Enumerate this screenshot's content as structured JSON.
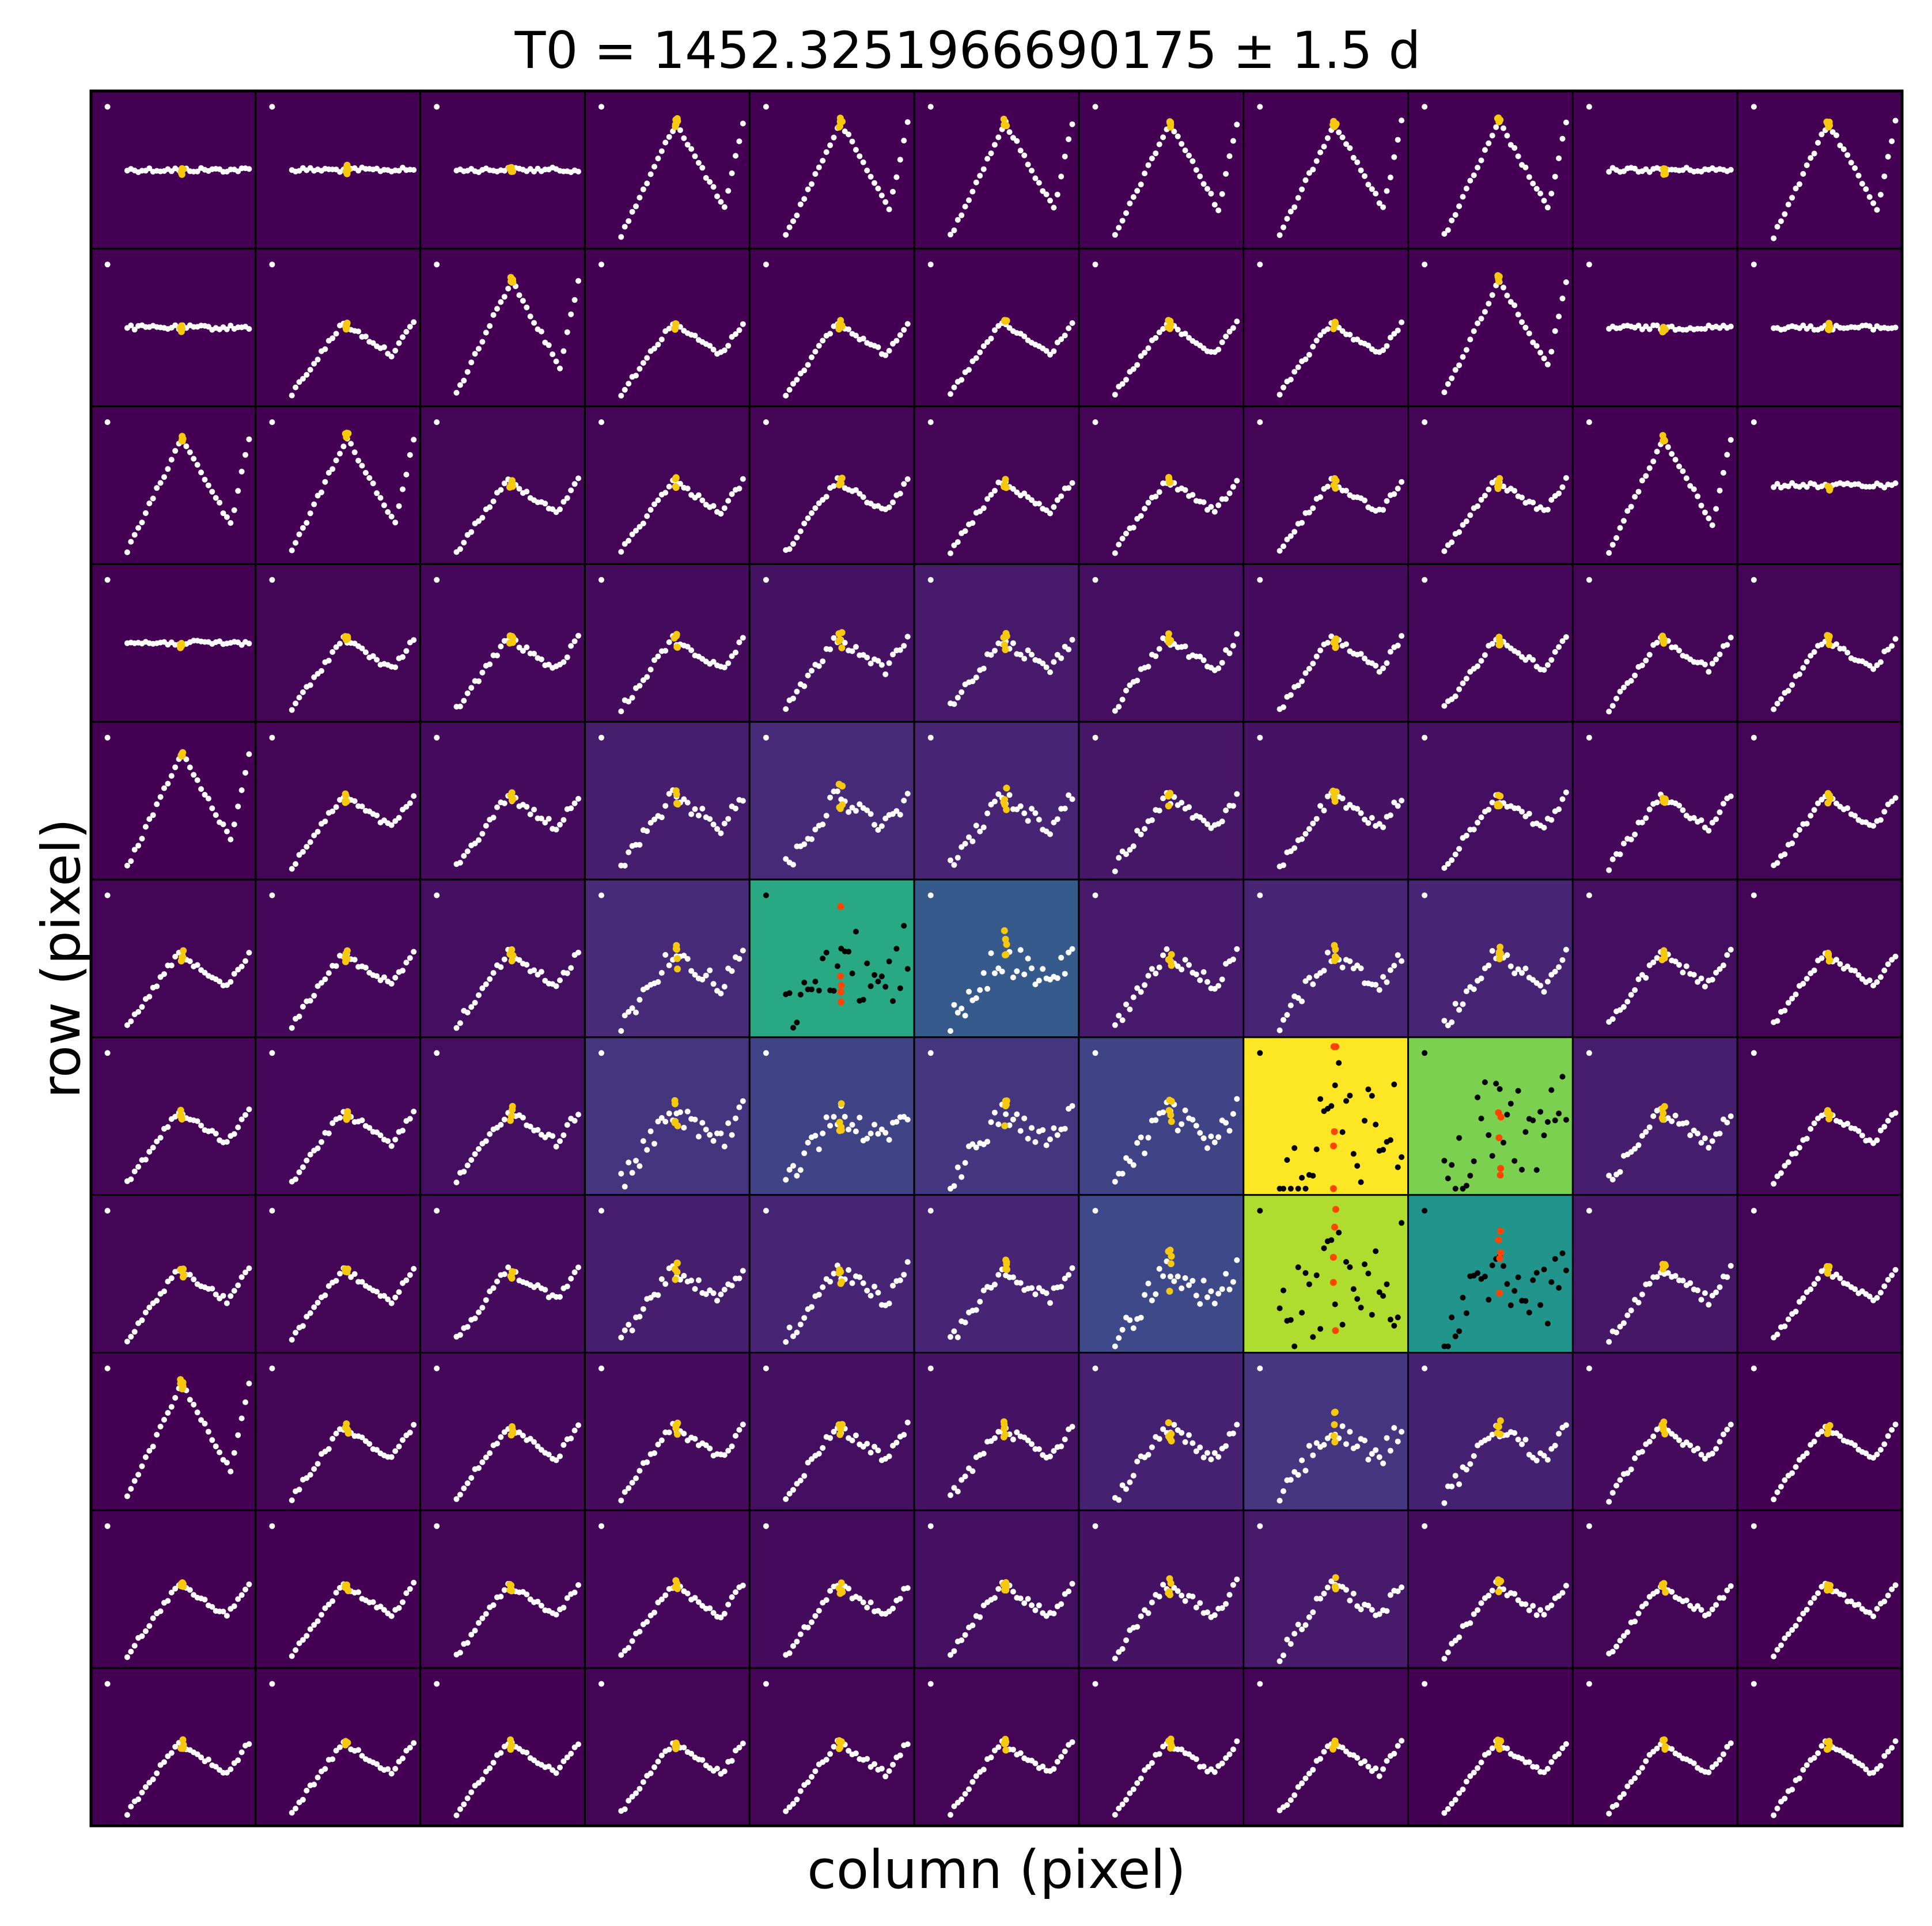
{
  "chart_data": {
    "type": "heatmap",
    "title": "T0 = 1452.3251966690175 ± 1.5 d",
    "xlabel": "column (pixel)",
    "ylabel": "row (pixel)",
    "rows": 11,
    "cols": 11,
    "grid": true,
    "colormap": "viridis",
    "inset_colors": {
      "points": "#ffffff",
      "points_bright": "#000000",
      "transit": "#f6c90e",
      "transit_bright": "#ff4500"
    },
    "flux_grid": [
      [
        0.0,
        0.0,
        0.0,
        0.0,
        0.0,
        0.0,
        0.0,
        0.0,
        0.0,
        0.0,
        0.0
      ],
      [
        0.0,
        0.0,
        0.0,
        0.0,
        0.0,
        0.0,
        0.0,
        0.0,
        0.0,
        0.0,
        0.0
      ],
      [
        0.0,
        0.0,
        0.01,
        0.01,
        0.01,
        0.01,
        0.01,
        0.01,
        0.01,
        0.0,
        0.0
      ],
      [
        0.0,
        0.01,
        0.02,
        0.03,
        0.05,
        0.07,
        0.04,
        0.03,
        0.02,
        0.01,
        0.01
      ],
      [
        0.0,
        0.01,
        0.03,
        0.08,
        0.12,
        0.1,
        0.06,
        0.05,
        0.04,
        0.02,
        0.01
      ],
      [
        0.01,
        0.02,
        0.04,
        0.12,
        0.6,
        0.28,
        0.07,
        0.1,
        0.1,
        0.04,
        0.01
      ],
      [
        0.01,
        0.02,
        0.04,
        0.15,
        0.2,
        0.16,
        0.2,
        1.0,
        0.8,
        0.08,
        0.01
      ],
      [
        0.01,
        0.01,
        0.03,
        0.08,
        0.1,
        0.1,
        0.22,
        0.88,
        0.52,
        0.06,
        0.01
      ],
      [
        0.0,
        0.01,
        0.02,
        0.03,
        0.04,
        0.05,
        0.09,
        0.16,
        0.09,
        0.03,
        0.0
      ],
      [
        0.0,
        0.0,
        0.01,
        0.02,
        0.03,
        0.04,
        0.05,
        0.07,
        0.03,
        0.01,
        0.0
      ],
      [
        0.0,
        0.0,
        0.0,
        0.01,
        0.01,
        0.01,
        0.01,
        0.01,
        0.0,
        0.0,
        0.0
      ]
    ],
    "pixel_type": [
      [
        "flat",
        "flat",
        "flat",
        "peak",
        "peak",
        "peak",
        "peak",
        "peak",
        "peak",
        "flat",
        "peak"
      ],
      [
        "flat",
        "wave",
        "peak",
        "wave",
        "wave",
        "wave",
        "wave",
        "wave",
        "peak",
        "flat",
        "flat"
      ],
      [
        "peak",
        "peak",
        "wave",
        "wave",
        "wave",
        "wave",
        "wave",
        "wave",
        "wave",
        "peak",
        "flat"
      ],
      [
        "flat",
        "wave",
        "wave",
        "wave",
        "wave",
        "wave",
        "wave",
        "wave",
        "wave",
        "wave",
        "wave"
      ],
      [
        "peak",
        "wave",
        "wave",
        "wave",
        "wave",
        "wave",
        "wave",
        "wave",
        "wave",
        "wave",
        "wave"
      ],
      [
        "wave",
        "wave",
        "wave",
        "wave",
        "wave",
        "wave",
        "wave",
        "wave",
        "wave",
        "wave",
        "wave"
      ],
      [
        "wave",
        "wave",
        "wave",
        "wave",
        "wave",
        "wave",
        "wave",
        "wave",
        "wave",
        "wave",
        "wave"
      ],
      [
        "wave",
        "wave",
        "wave",
        "wave",
        "wave",
        "wave",
        "wave",
        "wave",
        "wave",
        "wave",
        "wave"
      ],
      [
        "peak",
        "wave",
        "wave",
        "wave",
        "wave",
        "wave",
        "wave",
        "wave",
        "wave",
        "wave",
        "wave"
      ],
      [
        "wave",
        "wave",
        "wave",
        "wave",
        "wave",
        "wave",
        "wave",
        "wave",
        "wave",
        "wave",
        "wave"
      ],
      [
        "wave",
        "wave",
        "wave",
        "wave",
        "wave",
        "wave",
        "wave",
        "wave",
        "wave",
        "wave",
        "wave"
      ]
    ]
  }
}
